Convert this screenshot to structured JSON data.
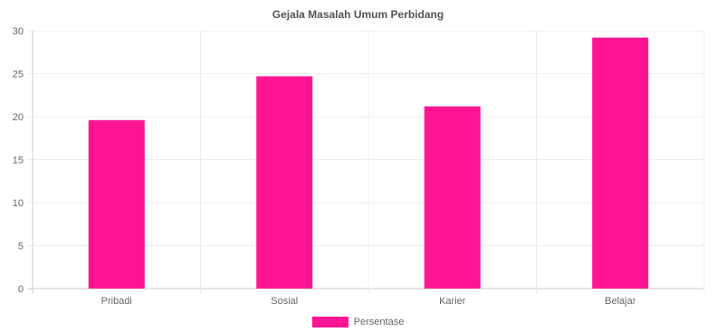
{
  "chart_data": {
    "type": "bar",
    "title": "Gejala Masalah Umum Perbidang",
    "categories": [
      "Pribadi",
      "Sosial",
      "Karier",
      "Belajar"
    ],
    "series": [
      {
        "name": "Persentase",
        "values": [
          19.6,
          24.7,
          21.2,
          29.2
        ],
        "color": "#ff1493"
      }
    ],
    "ylim": [
      0,
      30
    ],
    "yticks": [
      0,
      5,
      10,
      15,
      20,
      25,
      30
    ],
    "grid": true,
    "legend": "bottom"
  }
}
